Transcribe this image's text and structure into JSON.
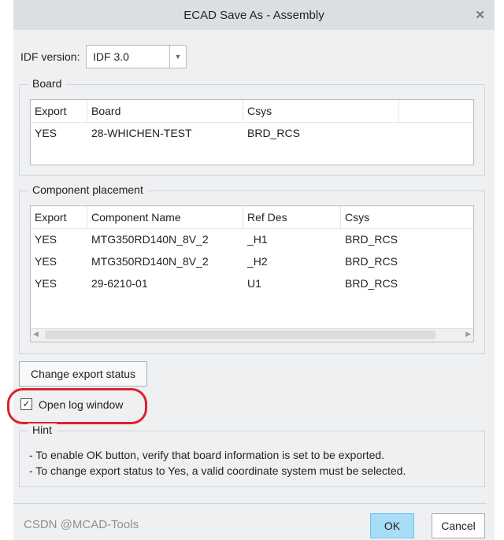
{
  "window": {
    "title": "ECAD Save As - Assembly",
    "close_icon": "close-icon"
  },
  "idf": {
    "label": "IDF version:",
    "value": "IDF 3.0"
  },
  "board": {
    "legend": "Board",
    "columns": [
      "Export",
      "Board",
      "Csys"
    ],
    "rows": [
      [
        "YES",
        "28-WHICHEN-TEST",
        "BRD_RCS"
      ]
    ]
  },
  "components": {
    "legend": "Component placement",
    "columns": [
      "Export",
      "Component Name",
      "Ref Des",
      "Csys"
    ],
    "rows": [
      [
        "YES",
        "MTG350RD140N_8V_2",
        "_H1",
        "BRD_RCS"
      ],
      [
        "YES",
        "MTG350RD140N_8V_2",
        "_H2",
        "BRD_RCS"
      ],
      [
        "YES",
        "29-6210-01",
        "U1",
        "BRD_RCS"
      ]
    ]
  },
  "change_export_label": "Change export status",
  "open_log": {
    "label": "Open log window",
    "checked": true
  },
  "hint": {
    "legend": "Hint",
    "lines": [
      "- To enable OK button, verify that board information is set to be exported.",
      "- To change export status to Yes, a valid coordinate system must be selected."
    ]
  },
  "ok_label": "OK",
  "cancel_label": "Cancel",
  "watermark": "CSDN @MCAD-Tools",
  "colors": {
    "annotation": "#e0202a",
    "ok_bg": "#a9dcf7"
  }
}
